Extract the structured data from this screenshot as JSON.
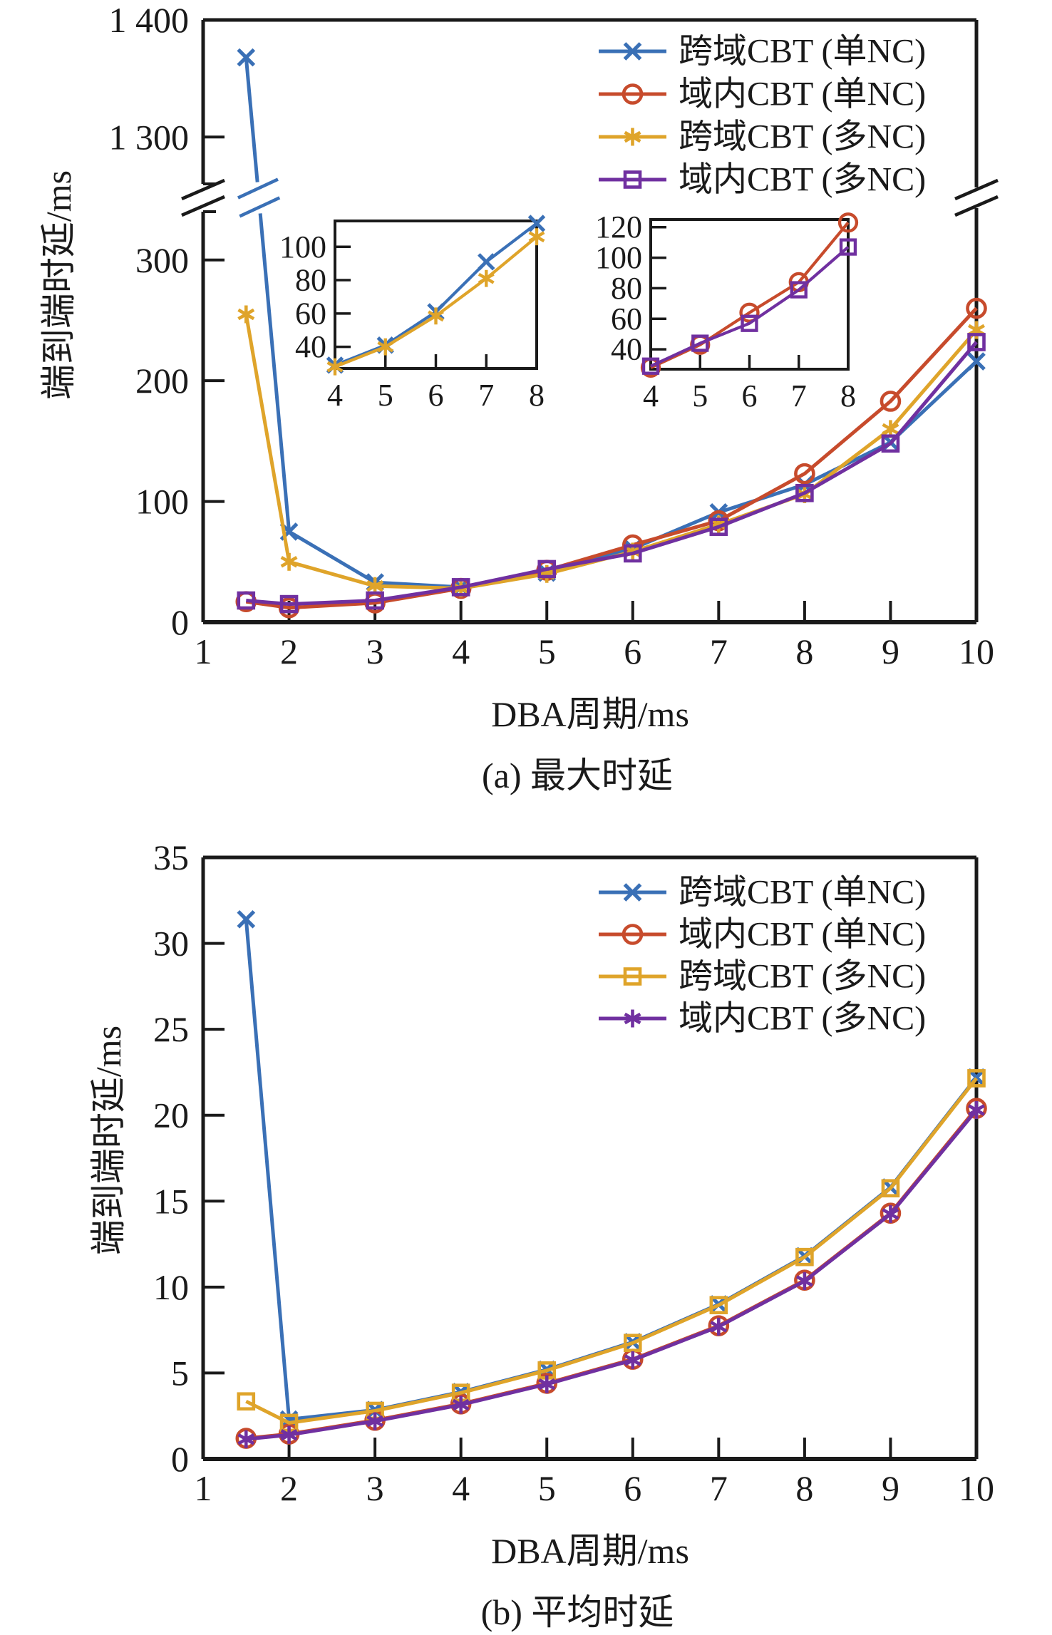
{
  "colors": {
    "blue": "#3A70B6",
    "red": "#C74B2C",
    "yellow": "#DFA42A",
    "purple": "#7030A0",
    "axis": "#1A1A1A"
  },
  "chart_data": [
    {
      "type": "line",
      "caption": "(a) 最大时延",
      "xlabel": "DBA周期/ms",
      "ylabel": "端到端时延/ms",
      "x": [
        1.5,
        2,
        3,
        4,
        5,
        6,
        7,
        8,
        9,
        10
      ],
      "xlim": [
        1,
        10
      ],
      "xticks": [
        "1",
        "2",
        "3",
        "4",
        "5",
        "6",
        "7",
        "8",
        "9",
        "10"
      ],
      "y_axis": {
        "broken": true,
        "lower": {
          "lim": [
            0,
            340
          ],
          "ticks": [
            [
              0,
              "0"
            ],
            [
              100,
              "100"
            ],
            [
              200,
              "200"
            ],
            [
              300,
              "300"
            ]
          ]
        },
        "upper": {
          "lim": [
            1260,
            1400
          ],
          "ticks": [
            [
              1300,
              "1 300"
            ],
            [
              1400,
              "1 400"
            ]
          ]
        }
      },
      "series": [
        {
          "name": "跨域CBT (单NC)",
          "color": "blue",
          "marker": "x",
          "values": [
            1368,
            75,
            33,
            29,
            41,
            61,
            91,
            114,
            149,
            216
          ]
        },
        {
          "name": "域内CBT (单NC)",
          "color": "red",
          "marker": "circle",
          "values": [
            17,
            12,
            16,
            28,
            43,
            64,
            84,
            123,
            183,
            260
          ]
        },
        {
          "name": "跨域CBT (多NC)",
          "color": "yellow",
          "marker": "asterisk",
          "values": [
            255,
            50,
            30,
            28,
            40,
            58.5,
            81,
            106,
            160,
            242
          ]
        },
        {
          "name": "域内CBT (多NC)",
          "color": "purple",
          "marker": "square",
          "values": [
            18,
            15,
            18,
            29,
            44,
            57,
            79,
            107,
            148,
            232
          ]
        }
      ],
      "insets": [
        {
          "xlim": [
            4,
            8
          ],
          "ylim": [
            27,
            115.5
          ],
          "xticks": [
            "4",
            "5",
            "6",
            "7",
            "8"
          ],
          "yticks": [
            [
              40,
              "40"
            ],
            [
              60,
              "60"
            ],
            [
              80,
              "80"
            ],
            [
              100,
              "100"
            ]
          ],
          "series": [
            0,
            2
          ]
        },
        {
          "xlim": [
            4,
            8
          ],
          "ylim": [
            27,
            125
          ],
          "xticks": [
            "4",
            "5",
            "6",
            "7",
            "8"
          ],
          "yticks": [
            [
              40,
              "40"
            ],
            [
              60,
              "60"
            ],
            [
              80,
              "80"
            ],
            [
              100,
              "100"
            ],
            [
              120,
              "120"
            ]
          ],
          "series": [
            1,
            3
          ]
        }
      ],
      "legend": [
        "跨域CBT (单NC)",
        "域内CBT (单NC)",
        "跨域CBT (多NC)",
        "域内CBT (多NC)"
      ]
    },
    {
      "type": "line",
      "caption": "(b) 平均时延",
      "xlabel": "DBA周期/ms",
      "ylabel": "端到端时延/ms",
      "x": [
        1.5,
        2,
        3,
        4,
        5,
        6,
        7,
        8,
        9,
        10
      ],
      "xlim": [
        1,
        10
      ],
      "xticks": [
        "1",
        "2",
        "3",
        "4",
        "5",
        "6",
        "7",
        "8",
        "9",
        "10"
      ],
      "y_axis": {
        "broken": false,
        "lim": [
          0,
          35
        ],
        "ticks": [
          [
            0,
            "0"
          ],
          [
            5,
            "5"
          ],
          [
            10,
            "10"
          ],
          [
            15,
            "15"
          ],
          [
            20,
            "20"
          ],
          [
            25,
            "25"
          ],
          [
            30,
            "30"
          ],
          [
            35,
            "35"
          ]
        ]
      },
      "series": [
        {
          "name": "跨域CBT (单NC)",
          "color": "blue",
          "marker": "x",
          "values": [
            31.4,
            2.3,
            2.85,
            3.9,
            5.2,
            6.8,
            9.0,
            11.8,
            15.8,
            22.2
          ]
        },
        {
          "name": "域内CBT (单NC)",
          "color": "red",
          "marker": "circle",
          "values": [
            1.2,
            1.45,
            2.25,
            3.2,
            4.4,
            5.8,
            7.75,
            10.4,
            14.3,
            20.4
          ]
        },
        {
          "name": "跨域CBT (多NC)",
          "color": "yellow",
          "marker": "square",
          "values": [
            3.35,
            2.1,
            2.8,
            3.85,
            5.15,
            6.75,
            8.95,
            11.75,
            15.75,
            22.15
          ]
        },
        {
          "name": "域内CBT (多NC)",
          "color": "purple",
          "marker": "asterisk",
          "values": [
            1.15,
            1.4,
            2.2,
            3.15,
            4.35,
            5.75,
            7.7,
            10.35,
            14.25,
            20.3
          ]
        }
      ],
      "legend": [
        "跨域CBT (单NC)",
        "域内CBT (单NC)",
        "跨域CBT (多NC)",
        "域内CBT (多NC)"
      ]
    }
  ]
}
